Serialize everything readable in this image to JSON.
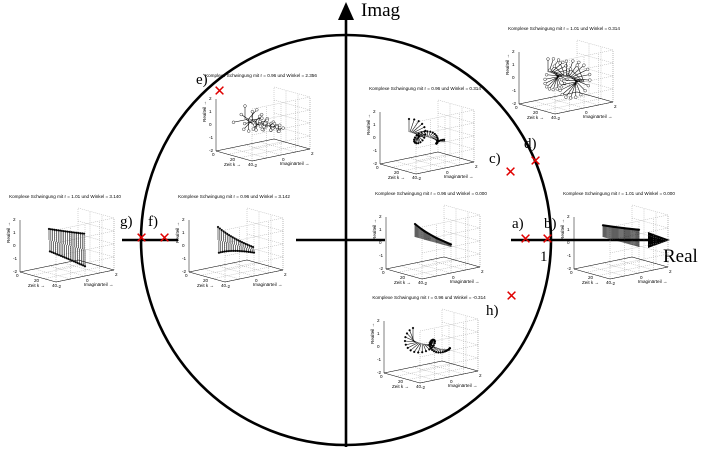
{
  "axes": {
    "real_label": "Real",
    "imag_label": "Imag",
    "unit_label": "1"
  },
  "marker_color": "#e00000",
  "marker_glyph": "✕",
  "points": [
    {
      "label": "a)"
    },
    {
      "label": "b)"
    },
    {
      "label": "c)"
    },
    {
      "label": "d)"
    },
    {
      "label": "e)"
    },
    {
      "label": "f)"
    },
    {
      "label": "g)"
    },
    {
      "label": "h)"
    }
  ],
  "plots": [
    {
      "id": "a",
      "title": "Komplexe Schwingung mit r = 0.96 und Winkel = 0.000",
      "xlabel": "Zeit k →",
      "ylabel": "Realteil →",
      "zlabel": "Imaginärteil →",
      "xticks": [
        "0",
        "20",
        "40"
      ],
      "yticks": [
        "-2",
        "0",
        "2"
      ],
      "zticks": [
        "2",
        "1",
        "0",
        "-1",
        "-2"
      ],
      "pattern": "decay-flat"
    },
    {
      "id": "b",
      "title": "Komplexe Schwingung mit r = 1.01 und Winkel = 0.000",
      "xlabel": "Zeit k →",
      "ylabel": "Realteil →",
      "zlabel": "Imaginärteil →",
      "xticks": [
        "0",
        "20",
        "40"
      ],
      "yticks": [
        "-2",
        "0",
        "2"
      ],
      "zticks": [
        "2",
        "1",
        "0",
        "-1",
        "-2"
      ],
      "pattern": "grow-flat"
    },
    {
      "id": "c",
      "title": "Komplexe Schwingung mit r = 0.96 und Winkel = 0.314",
      "xlabel": "Zeit k →",
      "ylabel": "Realteil →",
      "zlabel": "Imaginärteil →",
      "xticks": [
        "0",
        "20",
        "40"
      ],
      "yticks": [
        "-2",
        "0",
        "2"
      ],
      "zticks": [
        "2",
        "1",
        "0",
        "-1",
        "-2"
      ],
      "pattern": "spiral-decay"
    },
    {
      "id": "d",
      "title": "Komplexe Schwingung mit r = 1.01 und Winkel = 0.314",
      "xlabel": "Zeit k →",
      "ylabel": "Realteil →",
      "zlabel": "Imaginärteil →",
      "xticks": [
        "0",
        "20",
        "40"
      ],
      "yticks": [
        "-2",
        "0",
        "2"
      ],
      "zticks": [
        "2",
        "1",
        "0",
        "-1",
        "-2"
      ],
      "pattern": "spiral-grow"
    },
    {
      "id": "e",
      "title": "Komplexe Schwingung mit r = 0.96 und Winkel = 2.356",
      "xlabel": "Zeit k →",
      "ylabel": "Realteil →",
      "zlabel": "Imaginärteil →",
      "xticks": [
        "0",
        "20",
        "40"
      ],
      "yticks": [
        "-2",
        "0",
        "2"
      ],
      "zticks": [
        "2",
        "1",
        "0",
        "-1",
        "-2"
      ],
      "pattern": "fast-decay"
    },
    {
      "id": "f",
      "title": "Komplexe Schwingung mit r = 0.96 und Winkel = 3.142",
      "xlabel": "Zeit k →",
      "ylabel": "Realteil →",
      "zlabel": "Imaginärteil →",
      "xticks": [
        "0",
        "20",
        "40"
      ],
      "yticks": [
        "-2",
        "0",
        "2"
      ],
      "zticks": [
        "2",
        "1",
        "0",
        "-1",
        "-2"
      ],
      "pattern": "alt-decay"
    },
    {
      "id": "g",
      "title": "Komplexe Schwingung mit r = 1.01 und Winkel = 3.140",
      "xlabel": "Zeit k →",
      "ylabel": "Realteil →",
      "zlabel": "Imaginärteil →",
      "xticks": [
        "0",
        "20",
        "40"
      ],
      "yticks": [
        "-2",
        "0",
        "2"
      ],
      "zticks": [
        "2",
        "1",
        "0",
        "-1",
        "-2"
      ],
      "pattern": "alt-grow"
    },
    {
      "id": "h",
      "title": "Komplexe Schwingung mit r = 0.96 und Winkel = -0.314",
      "xlabel": "Zeit k →",
      "ylabel": "Realteil →",
      "zlabel": "Imaginärteil →",
      "xticks": [
        "0",
        "20",
        "40"
      ],
      "yticks": [
        "-2",
        "0",
        "2"
      ],
      "zticks": [
        "2",
        "1",
        "0",
        "-1",
        "-2"
      ],
      "pattern": "spiral-decay-neg"
    }
  ]
}
